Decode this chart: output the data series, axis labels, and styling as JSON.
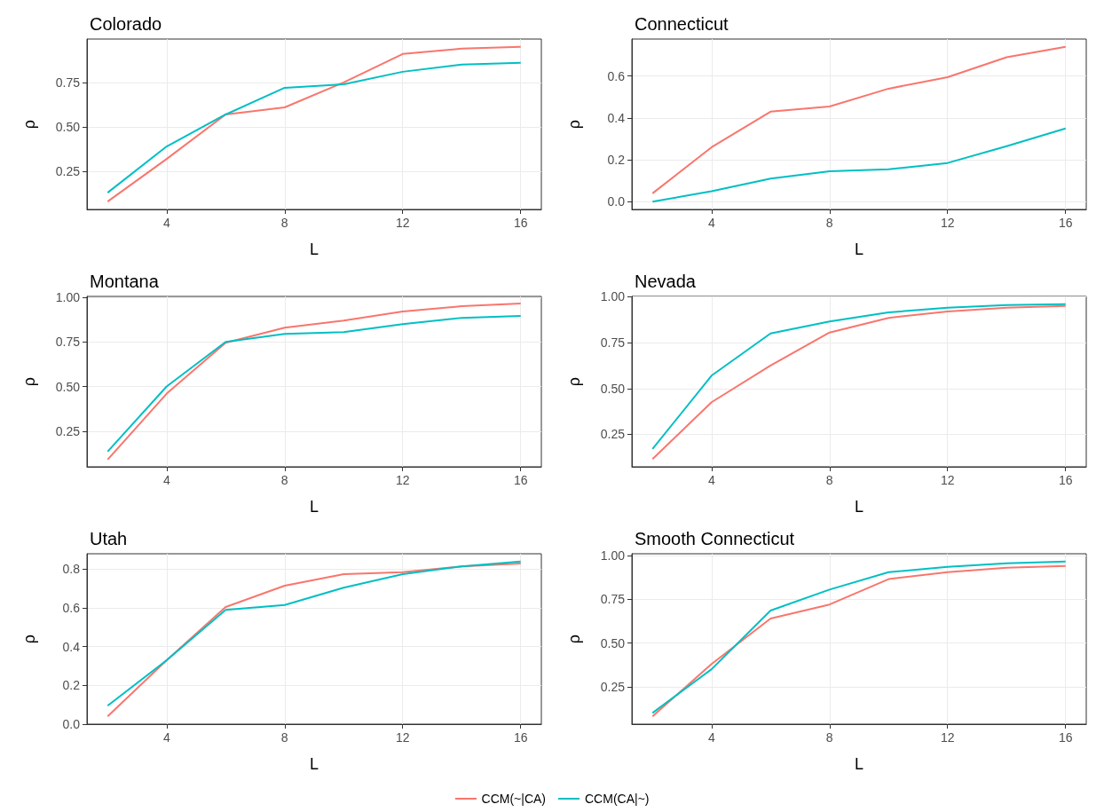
{
  "chart_data": [
    {
      "type": "line",
      "title": "Colorado",
      "xlabel": "L",
      "ylabel": "ρ",
      "x": [
        2,
        4,
        6,
        8,
        10,
        12,
        14,
        16
      ],
      "xlim": [
        1.3,
        16.7
      ],
      "xticks": [
        4,
        8,
        12,
        16
      ],
      "ylim": [
        0.036,
        0.994
      ],
      "yticks": [
        0.25,
        {
          "value": 0.5,
          "label": "0.50"
        },
        0.75
      ],
      "grid": true,
      "legend": "bottom",
      "series": [
        {
          "name": "CCM(~|CA)",
          "color": "#f8766d",
          "values": [
            0.08,
            0.32,
            0.57,
            0.61,
            0.75,
            0.91,
            0.94,
            0.95
          ]
        },
        {
          "name": "CCM(CA|~)",
          "color": "#00bfc4",
          "values": [
            0.13,
            0.39,
            0.57,
            0.72,
            0.74,
            0.81,
            0.85,
            0.86
          ]
        }
      ]
    },
    {
      "type": "line",
      "title": "Connecticut",
      "xlabel": "L",
      "ylabel": "ρ",
      "x": [
        2,
        4,
        6,
        8,
        10,
        12,
        14,
        16
      ],
      "xlim": [
        1.3,
        16.7
      ],
      "xticks": [
        4,
        8,
        12,
        16
      ],
      "ylim": [
        -0.037,
        0.777
      ],
      "yticks": [
        {
          "value": 0,
          "label": "0.0"
        },
        0.2,
        0.4,
        0.6
      ],
      "grid": true,
      "series": [
        {
          "color": "#f8766d",
          "values": [
            0.04,
            0.26,
            0.43,
            0.455,
            0.54,
            0.595,
            0.69,
            0.74
          ]
        },
        {
          "color": "#00bfc4",
          "values": [
            0.0,
            0.05,
            0.11,
            0.145,
            0.155,
            0.185,
            0.265,
            0.35
          ]
        }
      ]
    },
    {
      "type": "line",
      "title": "Montana",
      "xlabel": "L",
      "ylabel": "ρ",
      "x": [
        2,
        4,
        6,
        8,
        10,
        12,
        14,
        16
      ],
      "xlim": [
        1.3,
        16.7
      ],
      "xticks": [
        4,
        8,
        12,
        16
      ],
      "ylim": [
        0.05,
        1.005
      ],
      "yticks": [
        0.25,
        {
          "value": 0.5,
          "label": "0.50"
        },
        0.75,
        {
          "value": 1,
          "label": "1.00"
        }
      ],
      "grid": true,
      "series": [
        {
          "color": "#f8766d",
          "values": [
            0.09,
            0.46,
            0.745,
            0.83,
            0.87,
            0.92,
            0.95,
            0.965
          ]
        },
        {
          "color": "#00bfc4",
          "values": [
            0.135,
            0.5,
            0.75,
            0.795,
            0.805,
            0.85,
            0.885,
            0.895
          ]
        }
      ]
    },
    {
      "type": "line",
      "title": "Nevada",
      "xlabel": "L",
      "ylabel": "ρ",
      "x": [
        2,
        4,
        6,
        8,
        10,
        12,
        14,
        16
      ],
      "xlim": [
        1.3,
        16.7
      ],
      "xticks": [
        4,
        8,
        12,
        16
      ],
      "ylim": [
        0.073,
        1.002
      ],
      "yticks": [
        0.25,
        {
          "value": 0.5,
          "label": "0.50"
        },
        0.75,
        {
          "value": 1,
          "label": "1.00"
        }
      ],
      "grid": true,
      "series": [
        {
          "color": "#f8766d",
          "values": [
            0.115,
            0.425,
            0.625,
            0.805,
            0.885,
            0.92,
            0.94,
            0.95
          ]
        },
        {
          "color": "#00bfc4",
          "values": [
            0.17,
            0.57,
            0.8,
            0.865,
            0.915,
            0.94,
            0.955,
            0.96
          ]
        }
      ]
    },
    {
      "type": "line",
      "title": "Utah",
      "xlabel": "L",
      "ylabel": "ρ",
      "x": [
        2,
        4,
        6,
        8,
        10,
        12,
        14,
        16
      ],
      "xlim": [
        1.3,
        16.7
      ],
      "xticks": [
        4,
        8,
        12,
        16
      ],
      "ylim": [
        0,
        0.88
      ],
      "yticks": [
        {
          "value": 0,
          "label": "0.0"
        },
        0.2,
        0.4,
        0.6,
        0.8
      ],
      "grid": true,
      "series": [
        {
          "color": "#f8766d",
          "values": [
            0.04,
            0.33,
            0.605,
            0.715,
            0.775,
            0.785,
            0.815,
            0.83
          ]
        },
        {
          "color": "#00bfc4",
          "values": [
            0.095,
            0.33,
            0.59,
            0.615,
            0.705,
            0.775,
            0.815,
            0.84
          ]
        }
      ]
    },
    {
      "type": "line",
      "title": "Smooth Connecticut",
      "xlabel": "L",
      "ylabel": "ρ",
      "x": [
        2,
        4,
        6,
        8,
        10,
        12,
        14,
        16
      ],
      "xlim": [
        1.3,
        16.7
      ],
      "xticks": [
        4,
        8,
        12,
        16
      ],
      "ylim": [
        0.036,
        1.01
      ],
      "yticks": [
        0.25,
        {
          "value": 0.5,
          "label": "0.50"
        },
        0.75,
        {
          "value": 1,
          "label": "1.00"
        }
      ],
      "grid": true,
      "series": [
        {
          "color": "#f8766d",
          "values": [
            0.08,
            0.38,
            0.64,
            0.72,
            0.865,
            0.905,
            0.93,
            0.94
          ]
        },
        {
          "color": "#00bfc4",
          "values": [
            0.1,
            0.35,
            0.685,
            0.805,
            0.905,
            0.935,
            0.955,
            0.965
          ]
        }
      ]
    }
  ]
}
